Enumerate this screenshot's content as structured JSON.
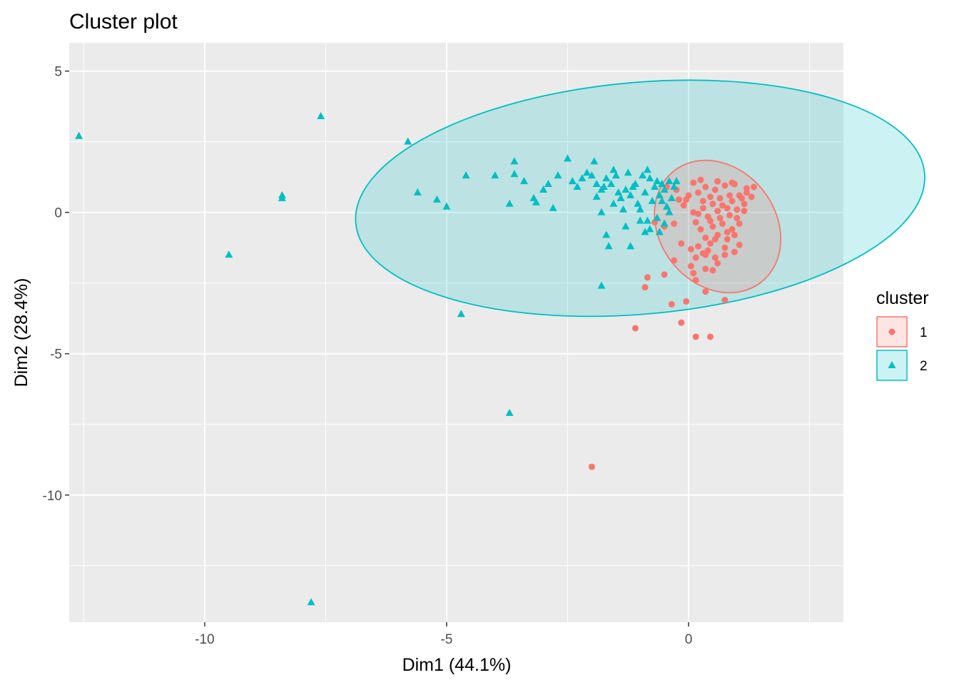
{
  "chart_data": {
    "type": "scatter",
    "title": "Cluster plot",
    "xlabel": "Dim1 (44.1%)",
    "ylabel": "Dim2 (28.4%)",
    "xlim": [
      -12.8,
      3.2
    ],
    "ylim": [
      -14.5,
      6.0
    ],
    "x_ticks": [
      -10,
      -5,
      0
    ],
    "x_tick_labels": [
      "-10",
      "-5",
      "0"
    ],
    "y_ticks": [
      5,
      0,
      -5,
      -10
    ],
    "y_tick_labels": [
      "5",
      "0",
      "-5",
      "-10"
    ],
    "grid": true,
    "legend": {
      "title": "cluster",
      "placement": "right",
      "entries": [
        {
          "label": "1",
          "series": "1"
        },
        {
          "label": "2",
          "series": "2"
        }
      ]
    },
    "series": [
      {
        "name": "1",
        "color": "#F8766D",
        "marker": "circle",
        "ellipse": {
          "cx": 0.6,
          "cy": -0.5,
          "rx": 2.45,
          "ry": 2.45,
          "angle_deg": 38,
          "rx_data": 1.2,
          "ry_data": 2.5
        },
        "points": [
          [
            -2.0,
            -9.0
          ],
          [
            -1.1,
            -4.1
          ],
          [
            -0.15,
            -3.9
          ],
          [
            0.15,
            -4.4
          ],
          [
            0.45,
            -4.4
          ],
          [
            -0.35,
            -3.25
          ],
          [
            -0.05,
            -3.15
          ],
          [
            0.75,
            -3.1
          ],
          [
            0.35,
            -2.8
          ],
          [
            -0.9,
            -2.65
          ],
          [
            -0.85,
            -2.3
          ],
          [
            -0.5,
            -2.2
          ],
          [
            0.1,
            -2.15
          ],
          [
            0.35,
            -2.0
          ],
          [
            0.5,
            -2.05
          ],
          [
            0.05,
            -1.9
          ],
          [
            -0.3,
            -1.7
          ],
          [
            0.15,
            -1.6
          ],
          [
            0.3,
            -1.45
          ],
          [
            0.55,
            -1.6
          ],
          [
            0.75,
            -1.5
          ],
          [
            0.95,
            -1.4
          ],
          [
            1.05,
            -1.15
          ],
          [
            0.2,
            -1.2
          ],
          [
            0.45,
            -1.1
          ],
          [
            0.05,
            -1.3
          ],
          [
            -0.15,
            -1.1
          ],
          [
            0.35,
            -0.9
          ],
          [
            0.6,
            -0.8
          ],
          [
            0.8,
            -0.95
          ],
          [
            0.25,
            -0.6
          ],
          [
            0.5,
            -0.5
          ],
          [
            0.7,
            -0.4
          ],
          [
            0.9,
            -0.6
          ],
          [
            1.0,
            -0.2
          ],
          [
            0.15,
            -0.35
          ],
          [
            -0.3,
            -0.4
          ],
          [
            -0.5,
            -0.5
          ],
          [
            -0.7,
            -0.35
          ],
          [
            0.4,
            -0.15
          ],
          [
            0.6,
            0.05
          ],
          [
            0.8,
            0.15
          ],
          [
            1.0,
            0.1
          ],
          [
            1.15,
            0.3
          ],
          [
            0.3,
            0.15
          ],
          [
            0.1,
            0.0
          ],
          [
            -0.1,
            0.25
          ],
          [
            -0.2,
            0.45
          ],
          [
            0.0,
            0.6
          ],
          [
            0.2,
            0.7
          ],
          [
            0.45,
            0.55
          ],
          [
            0.65,
            0.5
          ],
          [
            0.85,
            0.6
          ],
          [
            1.05,
            0.6
          ],
          [
            1.2,
            0.85
          ],
          [
            1.35,
            0.9
          ],
          [
            0.35,
            0.9
          ],
          [
            0.55,
            0.8
          ],
          [
            0.75,
            0.95
          ],
          [
            0.95,
            1.0
          ],
          [
            -0.25,
            0.8
          ],
          [
            -0.45,
            0.9
          ],
          [
            0.1,
            1.05
          ],
          [
            0.3,
            0.4
          ],
          [
            0.5,
            0.3
          ],
          [
            0.7,
            0.25
          ],
          [
            0.9,
            0.4
          ],
          [
            1.1,
            0.5
          ],
          [
            1.3,
            0.55
          ],
          [
            0.2,
            -0.05
          ],
          [
            0.45,
            -0.3
          ],
          [
            0.65,
            -0.2
          ],
          [
            0.85,
            -0.1
          ],
          [
            1.05,
            -0.4
          ],
          [
            0.55,
            -0.95
          ],
          [
            0.75,
            -1.25
          ],
          [
            0.95,
            -0.8
          ],
          [
            0.35,
            -1.5
          ],
          [
            0.6,
            -1.8
          ],
          [
            0.15,
            -2.4
          ],
          [
            0.4,
            -1.35
          ],
          [
            0.8,
            -0.7
          ],
          [
            1.15,
            0.05
          ],
          [
            -0.05,
            0.45
          ],
          [
            0.25,
            1.15
          ],
          [
            0.6,
            1.1
          ],
          [
            0.9,
            1.05
          ],
          [
            1.2,
            0.7
          ]
        ]
      },
      {
        "name": "2",
        "color": "#00BFC4",
        "marker": "triangle",
        "ellipse": {
          "cx": -1.0,
          "cy": 0.5,
          "rx_data": 5.9,
          "ry_data": 4.1,
          "angle_deg": 5
        },
        "points": [
          [
            -12.6,
            2.7
          ],
          [
            -7.6,
            3.4
          ],
          [
            -8.4,
            0.6
          ],
          [
            -8.4,
            0.5
          ],
          [
            -9.5,
            -1.5
          ],
          [
            -7.8,
            -13.8
          ],
          [
            -3.7,
            -7.1
          ],
          [
            -4.7,
            -3.6
          ],
          [
            -1.8,
            -2.6
          ],
          [
            -5.8,
            2.5
          ],
          [
            -5.6,
            0.7
          ],
          [
            -5.2,
            0.45
          ],
          [
            -5.0,
            0.2
          ],
          [
            -4.6,
            1.3
          ],
          [
            -3.6,
            1.8
          ],
          [
            -3.6,
            1.35
          ],
          [
            -3.4,
            1.1
          ],
          [
            -3.2,
            0.5
          ],
          [
            -3.15,
            0.35
          ],
          [
            -3.0,
            0.8
          ],
          [
            -2.9,
            1.0
          ],
          [
            -2.8,
            0.15
          ],
          [
            -2.7,
            1.3
          ],
          [
            -2.5,
            1.9
          ],
          [
            -2.4,
            1.1
          ],
          [
            -2.3,
            0.9
          ],
          [
            -2.2,
            1.2
          ],
          [
            -2.1,
            1.4
          ],
          [
            -2.0,
            1.3
          ],
          [
            -1.95,
            1.8
          ],
          [
            -1.9,
            1.0
          ],
          [
            -1.8,
            0.8
          ],
          [
            -1.75,
            0.9
          ],
          [
            -1.7,
            1.2
          ],
          [
            -1.6,
            1.0
          ],
          [
            -1.55,
            1.5
          ],
          [
            -1.5,
            1.3
          ],
          [
            -1.45,
            0.7
          ],
          [
            -1.4,
            0.5
          ],
          [
            -1.3,
            0.8
          ],
          [
            -1.25,
            1.4
          ],
          [
            -1.2,
            0.6
          ],
          [
            -1.15,
            0.9
          ],
          [
            -1.1,
            1.0
          ],
          [
            -1.05,
            0.3
          ],
          [
            -1.0,
            0.1
          ],
          [
            -0.95,
            1.3
          ],
          [
            -0.9,
            0.7
          ],
          [
            -0.85,
            1.5
          ],
          [
            -0.8,
            1.2
          ],
          [
            -0.75,
            0.4
          ],
          [
            -0.7,
            0.9
          ],
          [
            -0.65,
            1.1
          ],
          [
            -0.6,
            0.6
          ],
          [
            -0.55,
            1.0
          ],
          [
            -0.5,
            0.8
          ],
          [
            -0.45,
            0.2
          ],
          [
            -0.4,
            1.1
          ],
          [
            -0.35,
            0.5
          ],
          [
            -0.3,
            0.9
          ],
          [
            -0.25,
            1.1
          ],
          [
            -1.8,
            0.0
          ],
          [
            -1.7,
            -0.8
          ],
          [
            -1.65,
            -1.2
          ],
          [
            -1.3,
            -0.5
          ],
          [
            -1.2,
            -1.2
          ],
          [
            -1.0,
            -0.3
          ],
          [
            -0.9,
            -0.7
          ],
          [
            -0.8,
            -0.6
          ],
          [
            -0.65,
            -0.2
          ],
          [
            -0.6,
            -0.7
          ],
          [
            -0.5,
            -0.4
          ],
          [
            -0.4,
            0.0
          ],
          [
            -3.7,
            0.3
          ],
          [
            -4.0,
            1.3
          ],
          [
            -1.55,
            0.3
          ],
          [
            -1.35,
            0.1
          ],
          [
            -0.85,
            -0.3
          ],
          [
            -0.55,
            0.4
          ],
          [
            -1.9,
            0.55
          ]
        ]
      }
    ]
  }
}
